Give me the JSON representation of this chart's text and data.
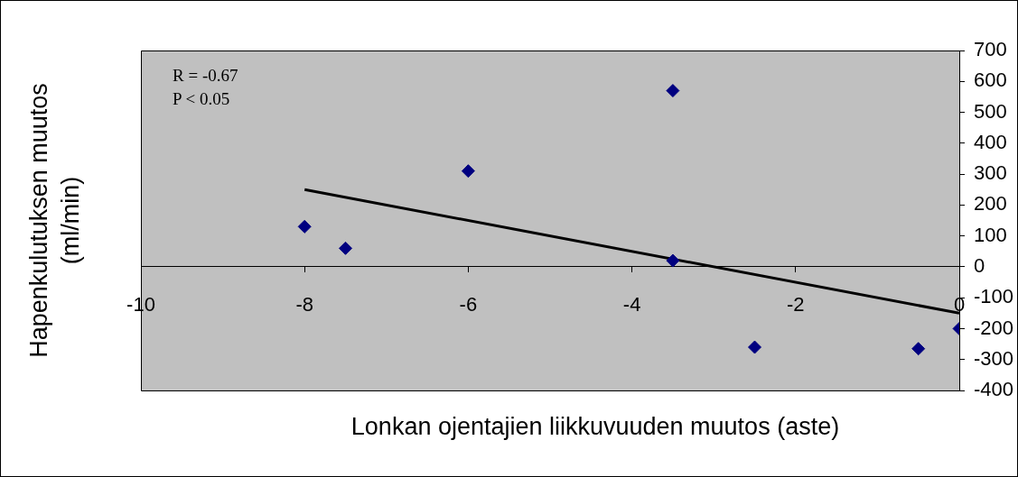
{
  "chart_data": {
    "type": "scatter",
    "xlabel": "Lonkan ojentajien liikkuvuuden muutos (aste)",
    "ylabel": "Hapenkulutuksen muutos (ml/min)",
    "annotations": [
      "R = -0.67",
      "P < 0.05"
    ],
    "series": [
      {
        "color": "#000080",
        "marker": "diamond",
        "x": [
          -8,
          -7.5,
          -6,
          -3.5,
          -3.5,
          -2.5,
          -0.5,
          0
        ],
        "values": [
          130,
          60,
          310,
          570,
          20,
          -260,
          -265,
          -200
        ]
      },
      {
        "type": "line",
        "color": "#000000",
        "marker": "none",
        "line_style": "solid",
        "x": [
          -8,
          0
        ],
        "values": [
          250,
          -150
        ]
      }
    ],
    "xlim": [
      -10,
      0
    ],
    "xticks": [
      -10,
      -8,
      -6,
      -4,
      -2,
      0
    ],
    "ylim": [
      -400,
      700
    ],
    "yticks": [
      -400,
      -300,
      -200,
      -100,
      0,
      100,
      200,
      300,
      400,
      500,
      600,
      700
    ],
    "grid": false,
    "legend": false
  }
}
